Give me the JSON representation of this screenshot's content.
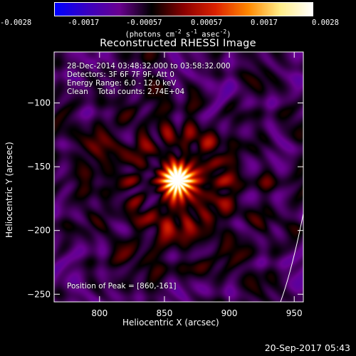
{
  "colorbar": {
    "ticks": [
      "-0.0028",
      "-0.0017",
      "-0.00057",
      "0.00057",
      "0.0017",
      "0.0028"
    ],
    "units_text": "(photons cm",
    "units_exp1": "-2",
    "units_mid": " s",
    "units_exp2": "-1",
    "units_mid2": " asec",
    "units_exp3": "-2",
    "units_end": ")"
  },
  "annotations": {
    "time_range": "28-Dec-2014 03:48:32.000 to 03:58:32.000",
    "detectors": "Detectors: 3F 6F 7F 9F, Att 0",
    "energy": "Energy Range: 6.0 - 12.0 keV",
    "clean": "Clean    Total counts: 2.74E+04",
    "peak": "Position of Peak = [860,-161]"
  },
  "date_stamp": "20-Sep-2017 05:43",
  "chart_data": {
    "type": "heatmap",
    "title": "Reconstructed RHESSI Image",
    "xlabel": "Heliocentric X (arcsec)",
    "ylabel": "Heliocentric Y (arcsec)",
    "xlim": [
      765,
      957
    ],
    "ylim": [
      -256,
      -60
    ],
    "xticks": [
      800,
      850,
      900,
      950
    ],
    "yticks": [
      -100,
      -150,
      -200,
      -250
    ],
    "color_range": [
      -0.0028,
      0.0028
    ],
    "peak": {
      "x": 860,
      "y": -161
    },
    "colors": [
      "#0000ff",
      "#3a00c0",
      "#6a0090",
      "#000000",
      "#8a0000",
      "#dd2200",
      "#ff8800",
      "#ffee88",
      "#ffffff"
    ]
  }
}
